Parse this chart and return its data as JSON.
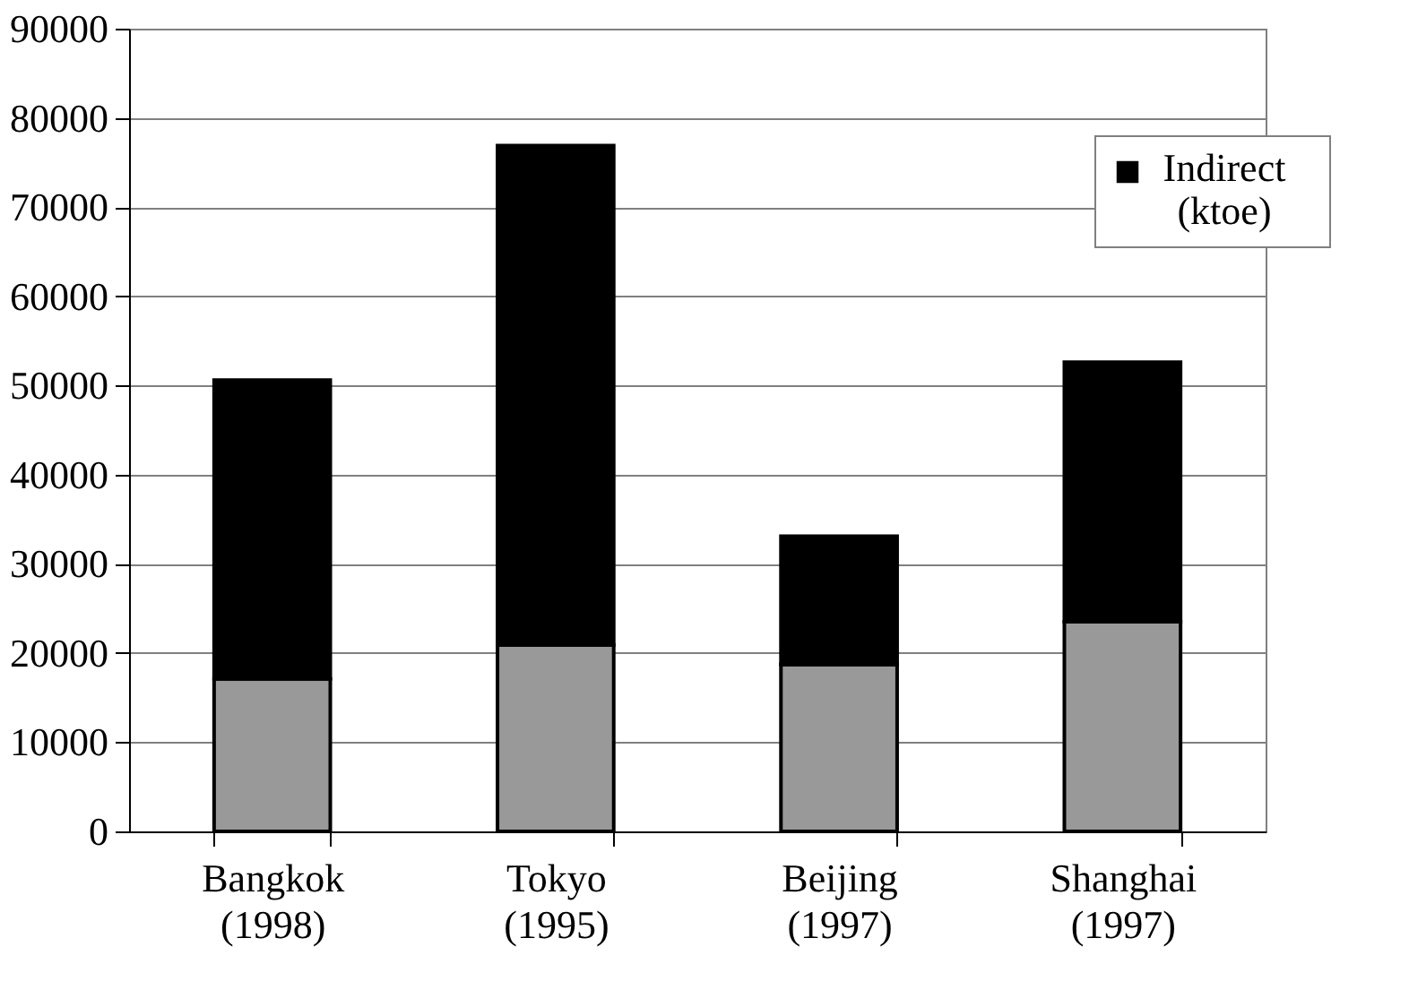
{
  "chart_data": {
    "type": "bar",
    "stacked": true,
    "categories": [
      "Bangkok\n(1998)",
      "Tokyo\n(1995)",
      "Beijing\n(1997)",
      "Shanghai\n(1997)"
    ],
    "series": [
      {
        "color": "#999999",
        "values": [
          17100,
          20900,
          18700,
          23500
        ]
      },
      {
        "name": "Indirect\n(ktoe)",
        "color": "#000000",
        "values": [
          33500,
          56000,
          14400,
          29100
        ]
      }
    ],
    "ylim": [
      0,
      90000
    ],
    "yticks": [
      0,
      10000,
      20000,
      30000,
      40000,
      50000,
      60000,
      70000,
      80000,
      90000
    ],
    "grid": "y",
    "legend": "top right"
  }
}
